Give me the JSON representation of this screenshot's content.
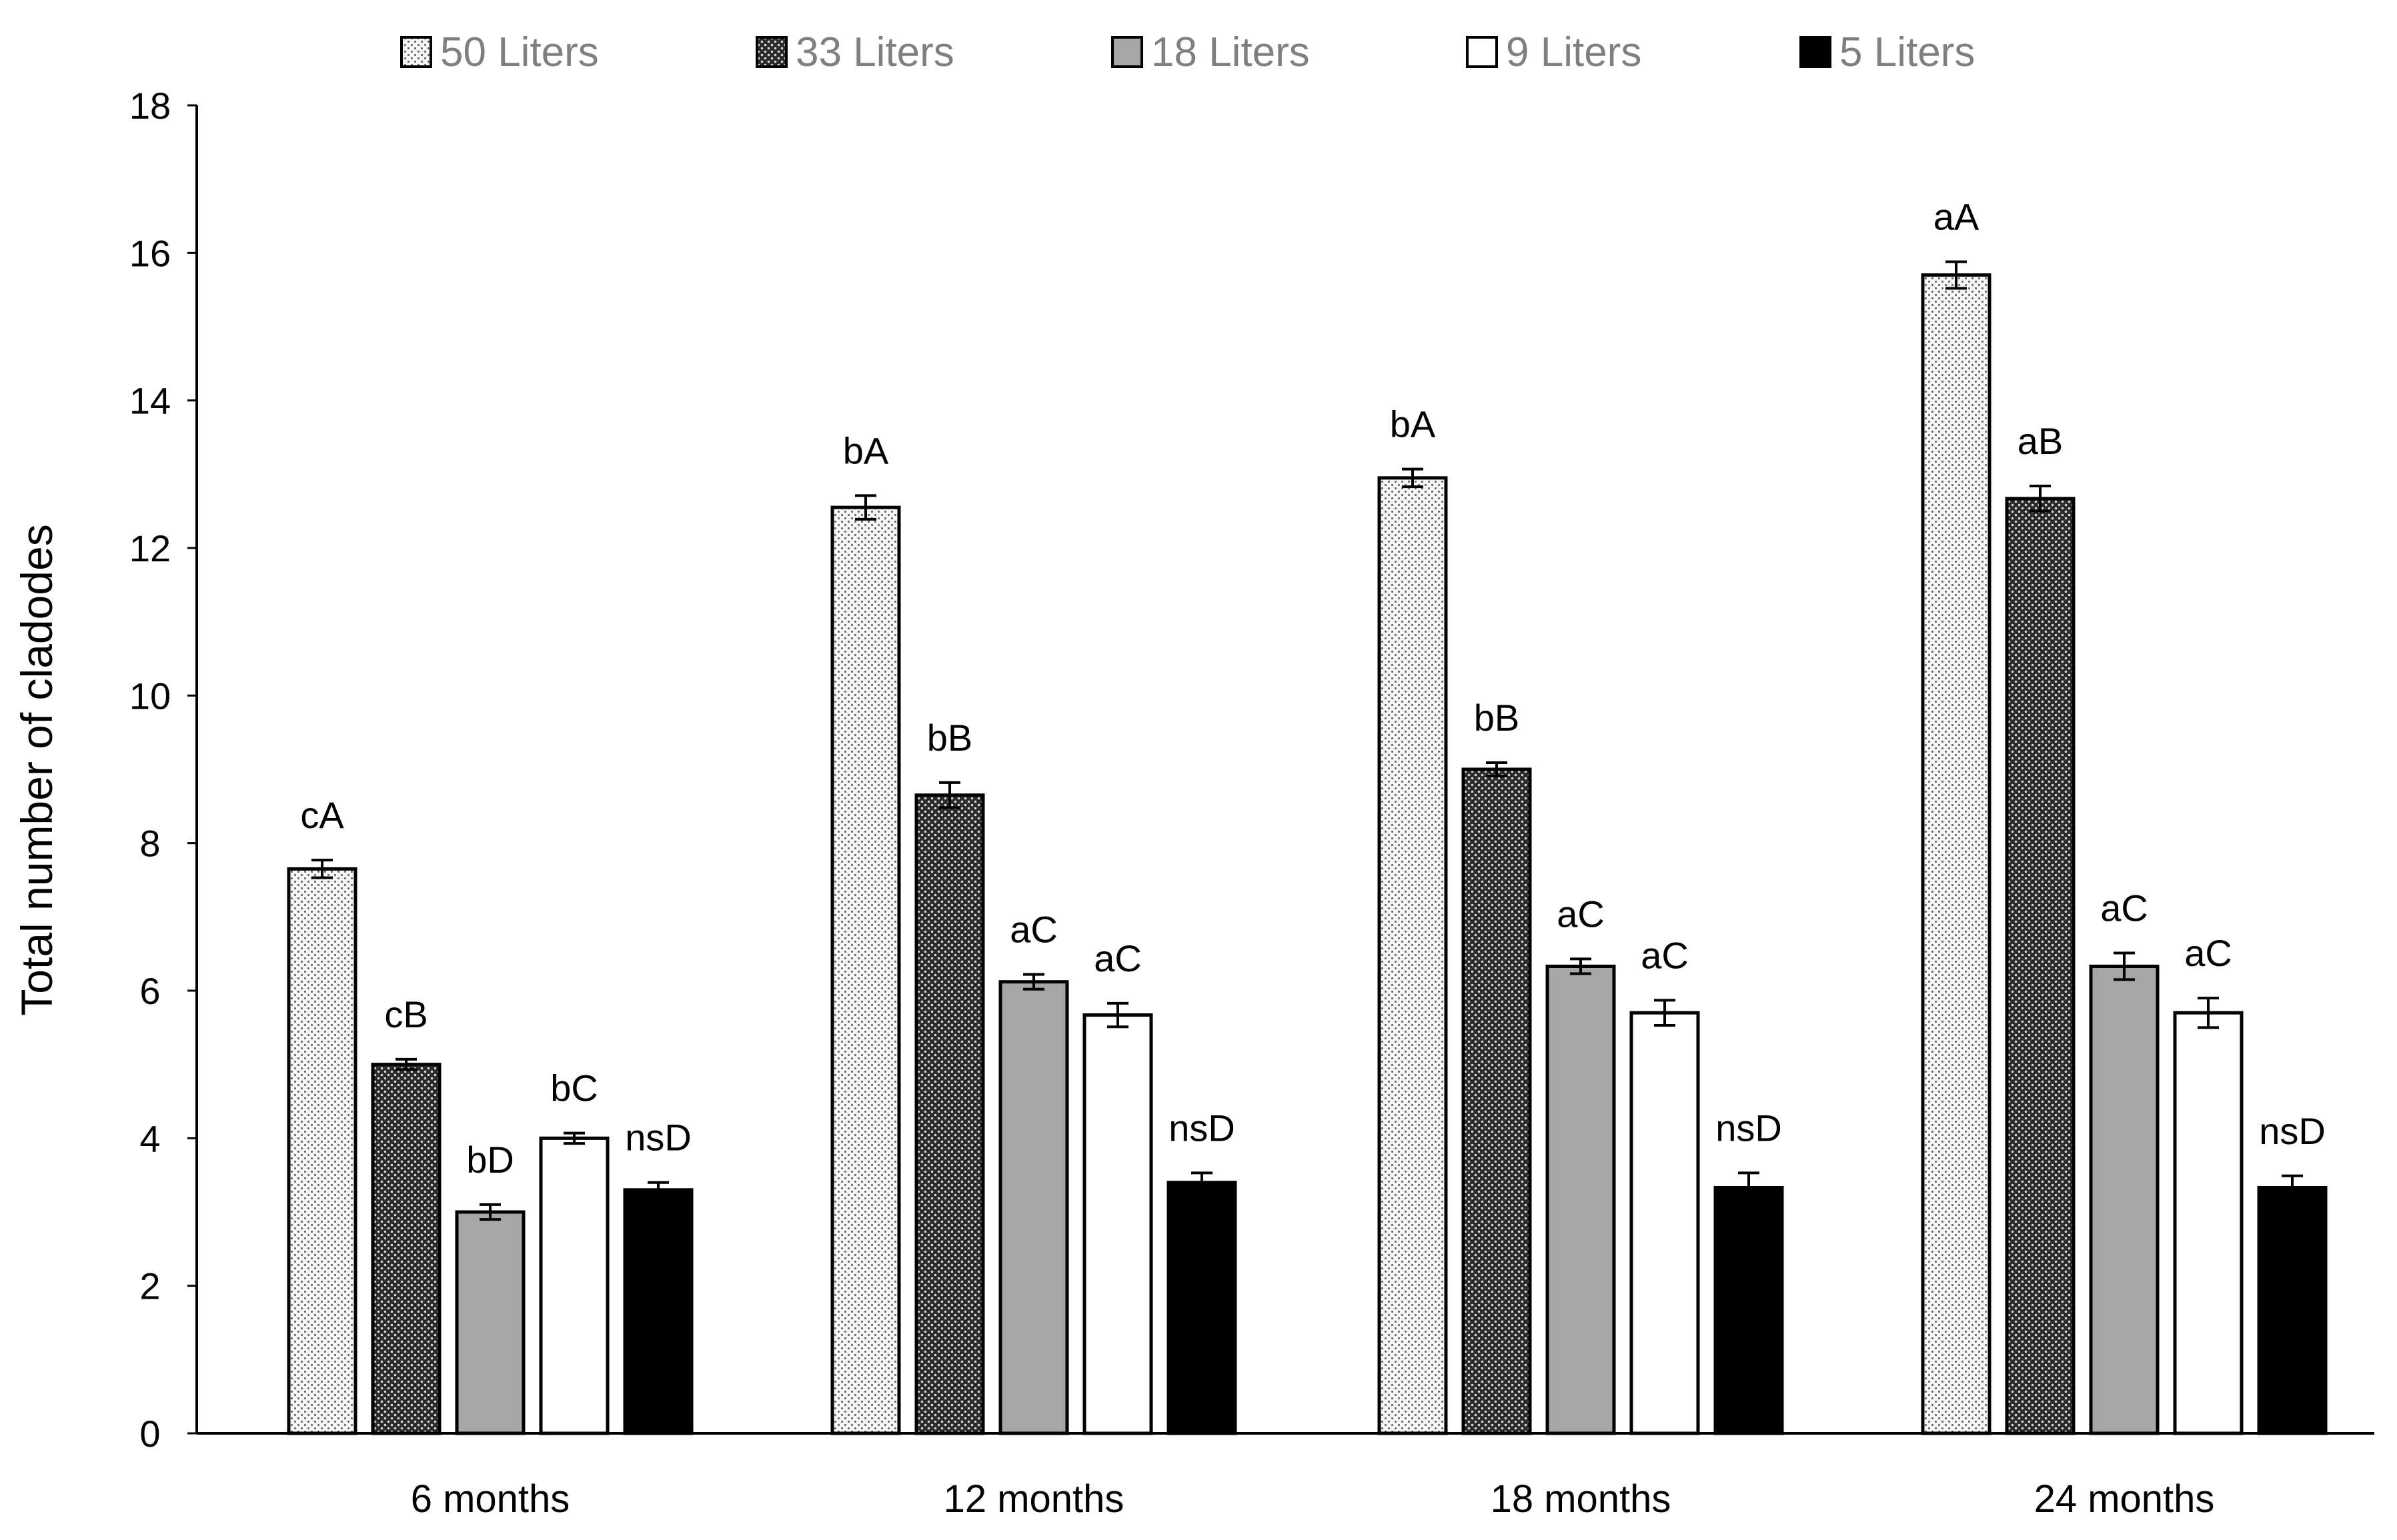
{
  "chart_data": {
    "type": "bar",
    "title": "",
    "xlabel": "",
    "ylabel": "Total number of cladodes",
    "ylim": [
      0,
      18
    ],
    "yticks": [
      0,
      2,
      4,
      6,
      8,
      10,
      12,
      14,
      16,
      18
    ],
    "grid": false,
    "legend_position": "top",
    "categories": [
      "6 months",
      "12 months",
      "18 months",
      "24 months"
    ],
    "series": [
      {
        "name": "50 Liters",
        "pattern": "dots-light",
        "values": [
          7.65,
          12.55,
          12.95,
          15.7
        ],
        "errors": [
          0.12,
          0.16,
          0.12,
          0.18
        ],
        "labels": [
          "cA",
          "bA",
          "bA",
          "aA"
        ]
      },
      {
        "name": "33 Liters",
        "pattern": "dots-dark",
        "values": [
          5.0,
          8.65,
          9.0,
          12.67
        ],
        "errors": [
          0.07,
          0.17,
          0.09,
          0.17
        ],
        "labels": [
          "cB",
          "bB",
          "bB",
          "aB"
        ]
      },
      {
        "name": "18 Liters",
        "pattern": "solid-gray",
        "values": [
          3.0,
          6.12,
          6.33,
          6.33
        ],
        "errors": [
          0.1,
          0.1,
          0.1,
          0.18
        ],
        "labels": [
          "bD",
          "aC",
          "aC",
          "aC"
        ]
      },
      {
        "name": "9 Liters",
        "pattern": "solid-white",
        "values": [
          4.0,
          5.67,
          5.7,
          5.7
        ],
        "errors": [
          0.07,
          0.16,
          0.17,
          0.2
        ],
        "labels": [
          "bC",
          "aC",
          "aC",
          "aC"
        ]
      },
      {
        "name": "5 Liters",
        "pattern": "solid-black",
        "values": [
          3.3,
          3.4,
          3.33,
          3.33
        ],
        "errors": [
          0.1,
          0.13,
          0.2,
          0.16
        ],
        "labels": [
          "nsD",
          "nsD",
          "nsD",
          "nsD"
        ]
      }
    ]
  },
  "colors": {
    "dark_dots_fill": "#3a3a3a",
    "light_dots_fill": "#f7f7f7",
    "gray_fill": "#a6a6a6",
    "white_fill": "#ffffff",
    "black_fill": "#000000",
    "legend_text": "#7f7f7f",
    "axis": "#000000"
  }
}
